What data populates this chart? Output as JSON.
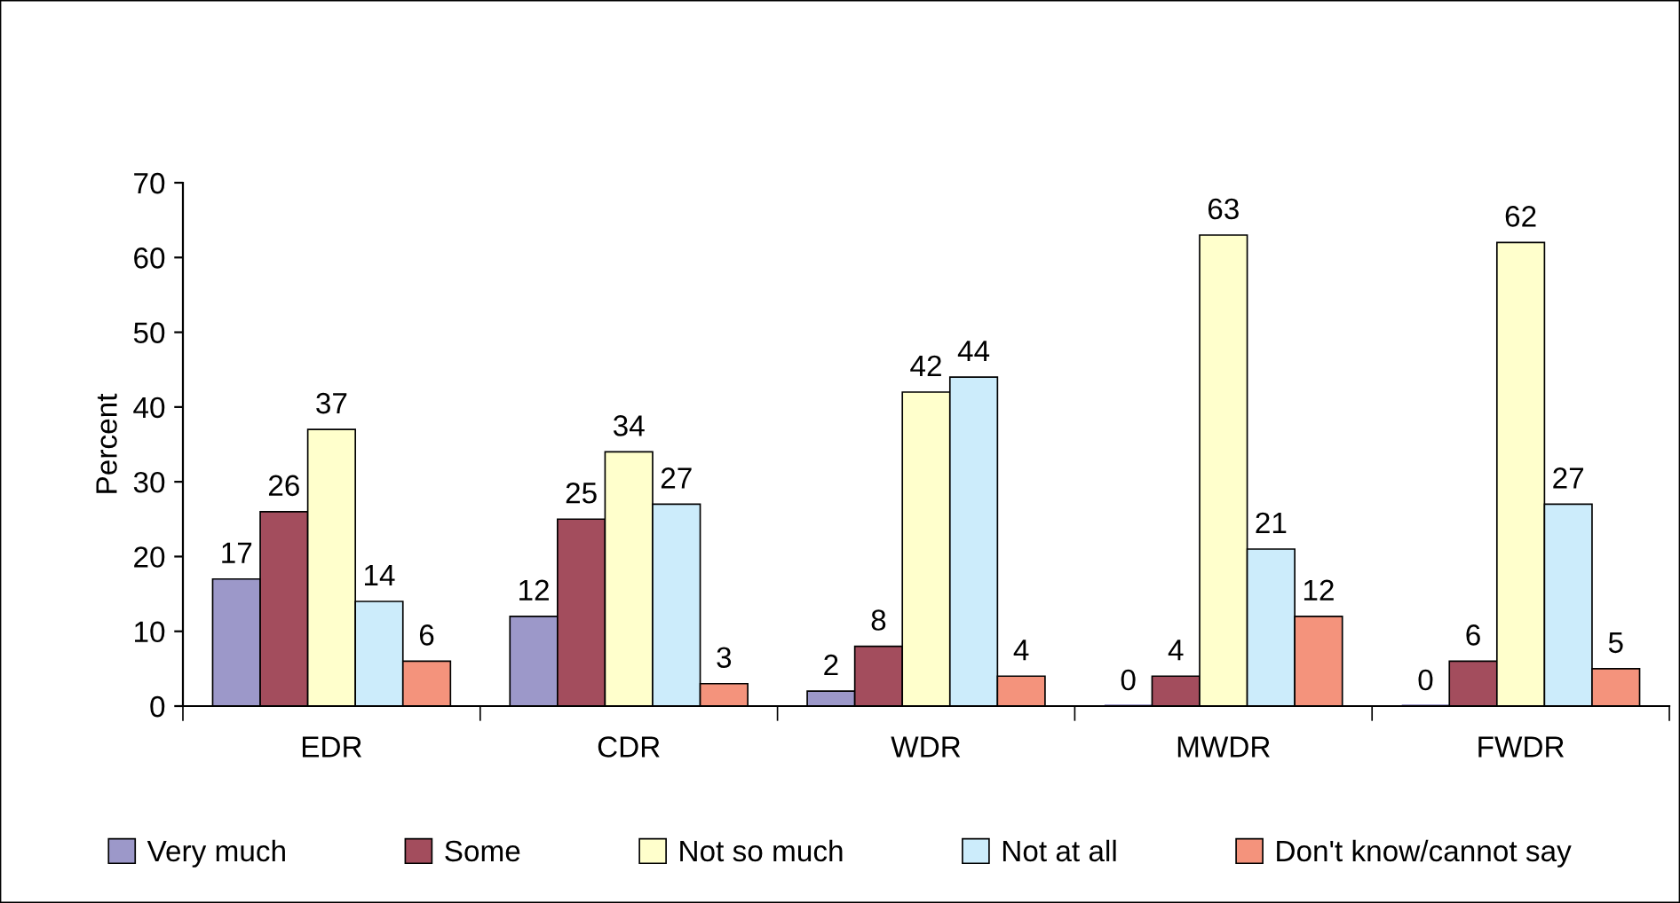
{
  "chart_data": {
    "type": "bar",
    "ylabel": "Percent",
    "categories": [
      "EDR",
      "CDR",
      "WDR",
      "MWDR",
      "FWDR"
    ],
    "series": [
      {
        "name": "Very much",
        "color": "#9c98c9",
        "values": [
          17,
          12,
          2,
          0,
          0
        ]
      },
      {
        "name": "Some",
        "color": "#a34d5d",
        "values": [
          26,
          25,
          8,
          4,
          6
        ]
      },
      {
        "name": "Not so much",
        "color": "#ffffcc",
        "values": [
          37,
          34,
          42,
          63,
          62
        ]
      },
      {
        "name": "Not at all",
        "color": "#ccecfb",
        "values": [
          14,
          27,
          44,
          21,
          27
        ]
      },
      {
        "name": "Don't know/cannot say",
        "color": "#f4937c",
        "values": [
          6,
          3,
          4,
          12,
          5
        ]
      }
    ],
    "ylim": [
      0,
      70
    ],
    "yticks": [
      0,
      10,
      20,
      30,
      40,
      50,
      60,
      70
    ],
    "data_labels": true,
    "grid": false,
    "legend": "bottom"
  }
}
